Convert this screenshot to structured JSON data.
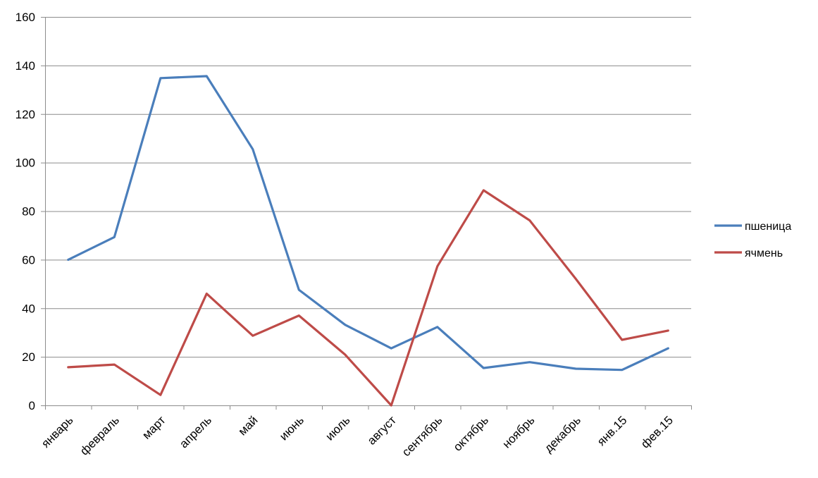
{
  "chart_data": {
    "type": "line",
    "title": "",
    "xlabel": "",
    "ylabel": "",
    "categories": [
      "январь",
      "февраль",
      "март",
      "апрель",
      "май",
      "июнь",
      "июль",
      "август",
      "сентябрь",
      "октябрь",
      "ноябрь",
      "декабрь",
      "янв.15",
      "фев.15"
    ],
    "ylim": [
      0,
      160
    ],
    "yticks": [
      0,
      20,
      40,
      60,
      80,
      100,
      120,
      140,
      160
    ],
    "grid": true,
    "legend_position": "right",
    "series": [
      {
        "name": "пшеница",
        "color": "#4A7EBB",
        "values": [
          60,
          69.3,
          134.8,
          135.6,
          105.5,
          47.6,
          33.2,
          23.5,
          32.3,
          15.4,
          17.8,
          15.1,
          14.6,
          23.5
        ]
      },
      {
        "name": "ячмень",
        "color": "#BE4B48",
        "values": [
          15.7,
          16.8,
          4.3,
          46,
          28.7,
          37,
          20.9,
          0,
          57.3,
          88.6,
          76.2,
          52.1,
          27,
          30.8
        ]
      }
    ]
  }
}
